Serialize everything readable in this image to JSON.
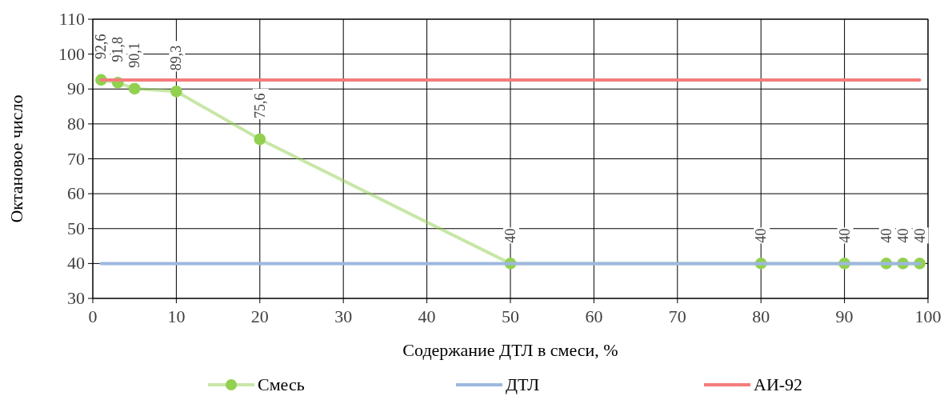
{
  "chart_data": {
    "type": "line",
    "xlabel": "Содержание ДТЛ в смеси, %",
    "ylabel": "Октановое число",
    "xlim": [
      0,
      100
    ],
    "xticks": [
      0,
      10,
      20,
      30,
      40,
      50,
      60,
      70,
      80,
      90,
      100
    ],
    "ylim": [
      30,
      110
    ],
    "yticks": [
      30,
      40,
      50,
      60,
      70,
      80,
      90,
      100,
      110
    ],
    "grid": true,
    "legend": "bottom",
    "series": [
      {
        "name": "Смесь",
        "color": "#92d050",
        "marker": "circle",
        "x": [
          1,
          3,
          5,
          10,
          20,
          50,
          80,
          90,
          95,
          97,
          99
        ],
        "values": [
          92.6,
          91.8,
          90.1,
          89.3,
          75.6,
          40,
          40,
          40,
          40,
          40,
          40
        ],
        "value_labels": [
          "92,6",
          "91,8",
          "90,1",
          "89,3",
          "75,6",
          "40",
          "40",
          "40",
          "40",
          "40",
          "40"
        ]
      },
      {
        "name": "ДТЛ",
        "color": "#9db8e0",
        "marker": "none",
        "x": [
          1,
          99
        ],
        "values": [
          40,
          40
        ]
      },
      {
        "name": "АИ-92",
        "color": "#f47c7c",
        "marker": "none",
        "x": [
          1,
          99
        ],
        "values": [
          92.6,
          92.6
        ]
      }
    ]
  }
}
